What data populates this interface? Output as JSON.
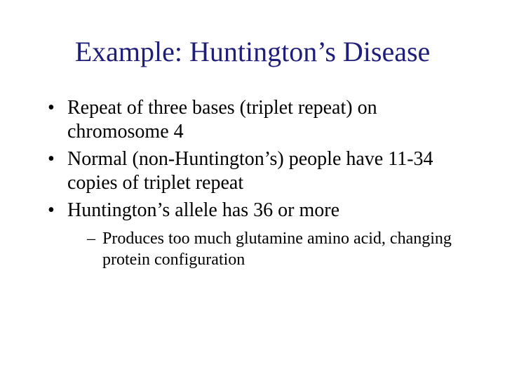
{
  "slide": {
    "title": "Example: Huntington’s Disease",
    "title_color": "#1f1f7a",
    "body_color": "#000000",
    "background_color": "#ffffff",
    "title_fontsize": 40,
    "body_fontsize": 28,
    "sub_fontsize": 24,
    "font_family": "Times New Roman",
    "bullets": [
      {
        "text": "Repeat of three bases (triplet repeat) on chromosome 4",
        "children": []
      },
      {
        "text": "Normal (non-Huntington’s) people have 11-34 copies of triplet repeat",
        "children": []
      },
      {
        "text": "Huntington’s allele has 36 or more",
        "children": [
          {
            "text": "Produces too much glutamine amino acid, changing protein configuration"
          }
        ]
      }
    ]
  }
}
